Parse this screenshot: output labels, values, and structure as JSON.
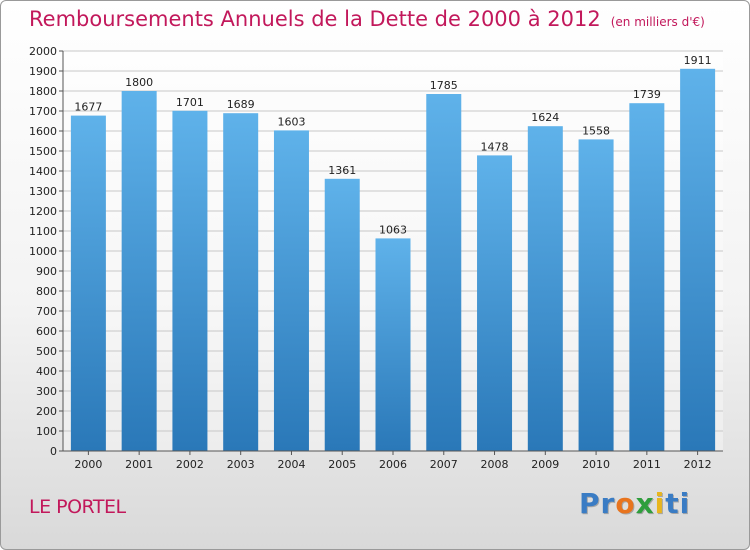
{
  "header": {
    "title": "Remboursements Annuels de la Dette de 2000 à 2012",
    "unit": "(en milliers d'€)"
  },
  "footer": {
    "place": "LE PORTEL",
    "logo_text": "Proxiti",
    "logo_letters": [
      {
        "char": "P",
        "color": "#3a7cc4"
      },
      {
        "char": "r",
        "color": "#3a7cc4"
      },
      {
        "char": "o",
        "color": "#e8741e"
      },
      {
        "char": "x",
        "color": "#2e9e3c"
      },
      {
        "char": "i",
        "color": "#e8b51e"
      },
      {
        "char": "t",
        "color": "#3a7cc4"
      },
      {
        "char": "i",
        "color": "#3a7cc4"
      }
    ]
  },
  "colors": {
    "bar_top": "#5fb2ea",
    "bar_bottom": "#2a78b8",
    "accent": "#c2185b"
  },
  "chart_data": {
    "type": "bar",
    "title": "Remboursements Annuels de la Dette de 2000 à 2012",
    "xlabel": "",
    "ylabel": "",
    "categories": [
      "2000",
      "2001",
      "2002",
      "2003",
      "2004",
      "2005",
      "2006",
      "2007",
      "2008",
      "2009",
      "2010",
      "2011",
      "2012"
    ],
    "values": [
      1677,
      1800,
      1701,
      1689,
      1603,
      1361,
      1063,
      1785,
      1478,
      1624,
      1558,
      1739,
      1911
    ],
    "ylim": [
      0,
      2000
    ],
    "ytick_step": 100,
    "grid": true,
    "data_labels": true
  }
}
